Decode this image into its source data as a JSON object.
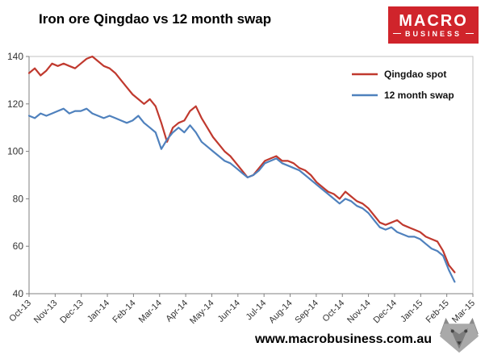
{
  "header": {
    "title": "Iron ore Qingdao vs 12 month swap",
    "logo": {
      "line1": "MACRO",
      "line2": "BUSINESS",
      "bg_color": "#d0242b",
      "text_color": "#ffffff"
    }
  },
  "chart_data": {
    "type": "line",
    "title": "Iron ore Qingdao vs 12 month swap",
    "xlabel": "",
    "ylabel": "",
    "ylim": [
      40,
      140
    ],
    "y_ticks": [
      40,
      60,
      80,
      100,
      120,
      140
    ],
    "grid": false,
    "legend_position": "top-right-inside",
    "x_tick_labels": [
      "Oct-13",
      "Nov-13",
      "Dec-13",
      "Jan-14",
      "Feb-14",
      "Mar-14",
      "Apr-14",
      "May-14",
      "Jun-14",
      "Jul-14",
      "Aug-14",
      "Sep-14",
      "Oct-14",
      "Nov-14",
      "Dec-14",
      "Jan-15",
      "Feb-15",
      "Mar-15"
    ],
    "x_range": [
      0,
      16.3
    ],
    "series": [
      {
        "name": "Qingdao spot",
        "color": "#c0392e",
        "values": [
          133,
          135,
          132,
          134,
          137,
          136,
          137,
          136,
          135,
          137,
          139,
          140,
          138,
          136,
          135,
          133,
          130,
          127,
          124,
          122,
          120,
          122,
          119,
          112,
          104,
          110,
          112,
          113,
          117,
          119,
          114,
          110,
          106,
          103,
          100,
          98,
          95,
          92,
          89,
          90,
          93,
          96,
          97,
          98,
          96,
          96,
          95,
          93,
          92,
          90,
          87,
          85,
          83,
          82,
          80,
          83,
          81,
          79,
          78,
          76,
          73,
          70,
          69,
          70,
          71,
          69,
          68,
          67,
          66,
          64,
          63,
          62,
          58,
          52,
          49
        ]
      },
      {
        "name": "12 month swap",
        "color": "#4f81bd",
        "values": [
          115,
          114,
          116,
          115,
          116,
          117,
          118,
          116,
          117,
          117,
          118,
          116,
          115,
          114,
          115,
          114,
          113,
          112,
          113,
          115,
          112,
          110,
          108,
          101,
          105,
          108,
          110,
          108,
          111,
          108,
          104,
          102,
          100,
          98,
          96,
          95,
          93,
          91,
          89,
          90,
          92,
          95,
          96,
          97,
          95,
          94,
          93,
          92,
          90,
          88,
          86,
          84,
          82,
          80,
          78,
          80,
          79,
          77,
          76,
          74,
          71,
          68,
          67,
          68,
          66,
          65,
          64,
          64,
          63,
          61,
          59,
          58,
          56,
          50,
          45
        ]
      }
    ],
    "axis_color": "#808080",
    "border_color": "#c0c0c0",
    "tick_label_color": "#333333"
  },
  "footer": {
    "url": "www.macrobusiness.com.au",
    "logo_icon": "wolf"
  }
}
